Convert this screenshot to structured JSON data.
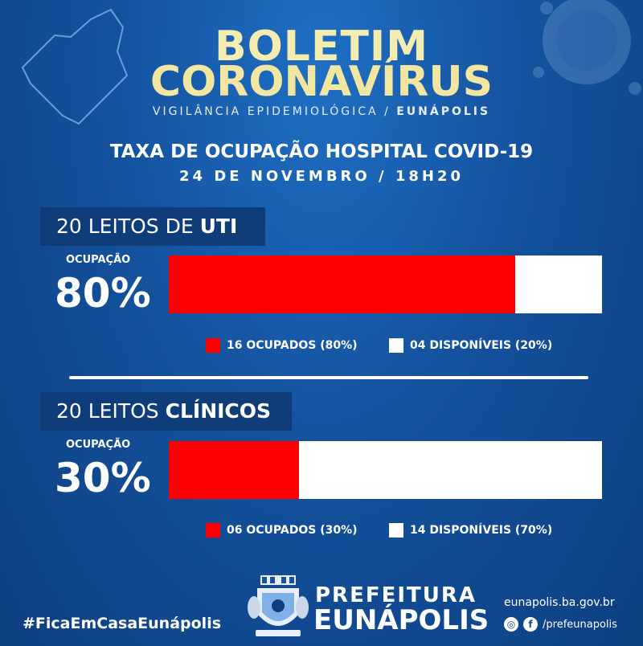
{
  "header": {
    "title_line1": "BOLETIM",
    "title_line2": "CORONAVÍRUS",
    "subtitle_prefix": "VIGILÂNCIA EPIDEMIOLÓGICA / ",
    "subtitle_bold": "EUNÁPOLIS"
  },
  "report": {
    "heading": "TAXA DE OCUPAÇÃO HOSPITAL COVID-19",
    "date": "24 DE NOVEMBRO / 18H20"
  },
  "uti": {
    "label_prefix": "20 LEITOS DE ",
    "label_bold": "UTI",
    "occ_label": "OCUPAÇÃO",
    "occ_value": "80%",
    "occupied_fraction": 0.8,
    "legend_occupied": "16 OCUPADOS (80%)",
    "legend_available": "04 DISPONÍVEIS (20%)"
  },
  "clinicos": {
    "label_prefix": "20 LEITOS ",
    "label_bold": "CLÍNICOS",
    "occ_label": "OCUPAÇÃO",
    "occ_value": "30%",
    "occupied_fraction": 0.3,
    "legend_occupied": "06 OCUPADOS (30%)",
    "legend_available": "14 DISPONÍVEIS (70%)"
  },
  "footer": {
    "hashtag": "#FicaEmCasaEunápolis",
    "pref_line1": "PREFEITURA",
    "pref_line2": "EUNÁPOLIS",
    "website": "eunapolis.ba.gov.br",
    "social_handle": "/prefeunapolis"
  },
  "colors": {
    "occupied": "#ff0000",
    "available": "#ffffff",
    "title_yellow": "#f5ecb0",
    "label_bg": "#0f3d7a"
  },
  "icons": [
    "map-outline-icon",
    "virus-icon",
    "crest-icon",
    "instagram-icon",
    "facebook-icon"
  ]
}
